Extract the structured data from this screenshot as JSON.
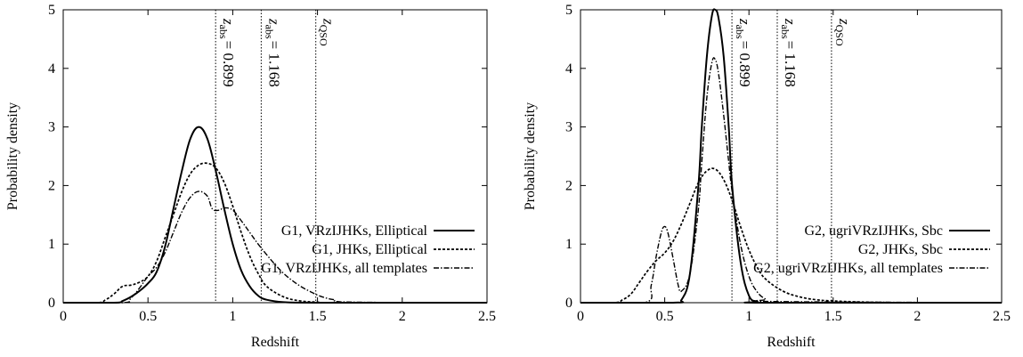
{
  "chart_data": [
    {
      "type": "line",
      "xlabel": "Redshift",
      "ylabel": "Probability density",
      "xlim": [
        0,
        2.5
      ],
      "ylim": [
        0,
        5
      ],
      "xticks": [
        "0",
        "0.5",
        "1",
        "1.5",
        "2",
        "2.5"
      ],
      "yticks": [
        "0",
        "1",
        "2",
        "3",
        "4",
        "5"
      ],
      "grid": false,
      "legend_position": "right",
      "vlines": [
        {
          "x": 0.899,
          "label_main": "z",
          "label_sub": "abs",
          "label_rest": "= 0.899"
        },
        {
          "x": 1.168,
          "label_main": "z",
          "label_sub": "abs",
          "label_rest": "= 1.168"
        },
        {
          "x": 1.49,
          "label_main": "z",
          "label_sub": "QSO",
          "label_rest": ""
        }
      ],
      "series": [
        {
          "name": "G1, VRzIJHKs, Elliptical",
          "style": "solid",
          "x": [
            0,
            0.3,
            0.35,
            0.4,
            0.45,
            0.5,
            0.55,
            0.6,
            0.65,
            0.7,
            0.75,
            0.8,
            0.85,
            0.9,
            0.95,
            1.0,
            1.05,
            1.1,
            1.15,
            1.2,
            1.3,
            1.5,
            2.5
          ],
          "y": [
            0,
            0,
            0.03,
            0.1,
            0.2,
            0.33,
            0.52,
            0.95,
            1.6,
            2.25,
            2.8,
            3.0,
            2.8,
            2.25,
            1.6,
            1.0,
            0.55,
            0.28,
            0.12,
            0.05,
            0.01,
            0,
            0
          ]
        },
        {
          "name": "G1, JHKs, Elliptical",
          "style": "dashed",
          "x": [
            0,
            0.2,
            0.25,
            0.3,
            0.35,
            0.4,
            0.45,
            0.5,
            0.55,
            0.6,
            0.65,
            0.7,
            0.75,
            0.8,
            0.85,
            0.9,
            0.95,
            1.0,
            1.05,
            1.1,
            1.15,
            1.2,
            1.3,
            1.4,
            1.5,
            1.6,
            2.5
          ],
          "y": [
            0,
            0,
            0.05,
            0.15,
            0.28,
            0.3,
            0.35,
            0.45,
            0.7,
            1.1,
            1.5,
            1.9,
            2.2,
            2.35,
            2.38,
            2.3,
            2.05,
            1.65,
            1.2,
            0.8,
            0.5,
            0.28,
            0.1,
            0.03,
            0.01,
            0,
            0
          ]
        },
        {
          "name": "G1, VRzIJHKs, all templates",
          "style": "dashdot",
          "x": [
            0,
            0.35,
            0.4,
            0.45,
            0.5,
            0.55,
            0.6,
            0.65,
            0.7,
            0.75,
            0.8,
            0.85,
            0.88,
            0.92,
            0.95,
            1.0,
            1.05,
            1.1,
            1.15,
            1.2,
            1.25,
            1.3,
            1.35,
            1.4,
            1.45,
            1.5,
            1.55,
            1.6,
            1.7,
            2.5
          ],
          "y": [
            0,
            0,
            0.08,
            0.25,
            0.45,
            0.6,
            0.85,
            1.2,
            1.55,
            1.8,
            1.9,
            1.82,
            1.6,
            1.58,
            1.62,
            1.58,
            1.4,
            1.2,
            1.0,
            0.82,
            0.65,
            0.5,
            0.38,
            0.28,
            0.2,
            0.13,
            0.08,
            0.05,
            0.01,
            0
          ]
        }
      ]
    },
    {
      "type": "line",
      "xlabel": "Redshift",
      "ylabel": "Probability density",
      "xlim": [
        0,
        2.5
      ],
      "ylim": [
        0,
        5
      ],
      "xticks": [
        "0",
        "0.5",
        "1",
        "1.5",
        "2",
        "2.5"
      ],
      "yticks": [
        "0",
        "1",
        "2",
        "3",
        "4",
        "5"
      ],
      "grid": false,
      "legend_position": "right",
      "vlines": [
        {
          "x": 0.899,
          "label_main": "z",
          "label_sub": "abs",
          "label_rest": "= 0.899"
        },
        {
          "x": 1.168,
          "label_main": "z",
          "label_sub": "abs",
          "label_rest": "= 1.168"
        },
        {
          "x": 1.49,
          "label_main": "z",
          "label_sub": "QSO",
          "label_rest": ""
        }
      ],
      "series": [
        {
          "name": "G2, ugriVRzIJHKs, Sbc",
          "style": "solid",
          "x": [
            0,
            0.55,
            0.6,
            0.65,
            0.7,
            0.72,
            0.75,
            0.78,
            0.8,
            0.82,
            0.85,
            0.88,
            0.9,
            0.95,
            1.0,
            1.05,
            1.1,
            2.5
          ],
          "y": [
            0,
            0,
            0.05,
            0.5,
            2.0,
            3.0,
            4.2,
            4.9,
            5.0,
            4.85,
            4.2,
            3.0,
            2.0,
            0.7,
            0.12,
            0.02,
            0,
            0
          ]
        },
        {
          "name": "G2, JHKs, Sbc",
          "style": "dashed",
          "x": [
            0,
            0.2,
            0.25,
            0.3,
            0.35,
            0.4,
            0.45,
            0.5,
            0.55,
            0.6,
            0.65,
            0.7,
            0.75,
            0.8,
            0.85,
            0.9,
            0.95,
            1.0,
            1.05,
            1.1,
            1.2,
            1.3,
            1.4,
            1.5,
            1.7,
            2.0,
            2.5
          ],
          "y": [
            0,
            0,
            0.05,
            0.15,
            0.35,
            0.55,
            0.72,
            0.85,
            1.05,
            1.35,
            1.7,
            2.05,
            2.25,
            2.28,
            2.1,
            1.75,
            1.3,
            0.9,
            0.6,
            0.4,
            0.2,
            0.1,
            0.05,
            0.03,
            0.01,
            0,
            0
          ]
        },
        {
          "name": "G2, ugriVRzIJHKs, all templates",
          "style": "dashdot",
          "x": [
            0,
            0.38,
            0.42,
            0.45,
            0.48,
            0.5,
            0.52,
            0.55,
            0.58,
            0.6,
            0.65,
            0.7,
            0.72,
            0.75,
            0.78,
            0.8,
            0.82,
            0.85,
            0.88,
            0.9,
            0.95,
            1.0,
            1.05,
            1.1,
            1.15,
            2.5
          ],
          "y": [
            0,
            0,
            0.3,
            0.8,
            1.2,
            1.3,
            1.18,
            0.75,
            0.3,
            0.2,
            0.5,
            1.6,
            2.4,
            3.5,
            4.1,
            4.15,
            3.9,
            3.2,
            2.4,
            1.9,
            1.0,
            0.45,
            0.18,
            0.06,
            0.02,
            0
          ]
        }
      ]
    }
  ]
}
